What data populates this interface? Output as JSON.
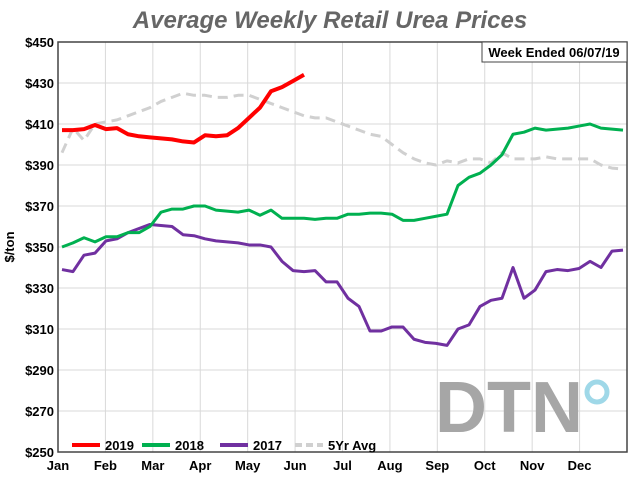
{
  "chart_data": {
    "type": "line",
    "title": "Average Weekly Retail Urea Prices",
    "annotation": "Week Ended 06/07/19",
    "ylabel": "$/ton",
    "xlabel": "",
    "ylim": [
      250,
      450
    ],
    "yticks": [
      "$450",
      "$430",
      "$410",
      "$390",
      "$370",
      "$350",
      "$330",
      "$310",
      "$290",
      "$270",
      "$250"
    ],
    "ytick_values": [
      450,
      430,
      410,
      390,
      370,
      350,
      330,
      310,
      290,
      270,
      250
    ],
    "xticks": [
      "Jan",
      "Feb",
      "Mar",
      "Apr",
      "May",
      "Jun",
      "Jul",
      "Aug",
      "Sep",
      "Oct",
      "Nov",
      "Dec"
    ],
    "x_unit": "week of year (1-52)",
    "grid": true,
    "legend_placement": "bottom-left",
    "watermark": "DTN",
    "series": [
      {
        "name": "2019",
        "color": "#ff0000",
        "dashed": false,
        "values": [
          407,
          407,
          407.5,
          409.5,
          407.5,
          408,
          405,
          404,
          403.5,
          403,
          402.5,
          401.5,
          401,
          404.5,
          404,
          404.5,
          408,
          413,
          418,
          426,
          428,
          431,
          434
        ]
      },
      {
        "name": "2018",
        "color": "#00b050",
        "dashed": false,
        "values": [
          350,
          352,
          354.5,
          352.5,
          355,
          355,
          357,
          357,
          360,
          367,
          368.5,
          368.5,
          370,
          370,
          368,
          367.5,
          367,
          368,
          365.5,
          368,
          364,
          364,
          364,
          363.5,
          364,
          364,
          366,
          366,
          366.5,
          366.5,
          366,
          363,
          363,
          364,
          365,
          366,
          380,
          384,
          386,
          390,
          395,
          405,
          406,
          408,
          407,
          407.5,
          408,
          409,
          410,
          408,
          407.5,
          407
        ]
      },
      {
        "name": "2017",
        "color": "#7030a0",
        "dashed": false,
        "values": [
          339,
          338,
          346,
          347,
          353,
          354,
          357,
          359,
          361,
          360.5,
          360,
          356,
          355.5,
          354,
          353,
          352.5,
          352,
          351,
          351,
          350,
          343,
          338.5,
          338,
          338.5,
          333,
          333,
          325,
          321,
          309,
          309,
          311,
          311,
          305,
          303.5,
          303,
          302,
          310,
          312,
          321,
          324,
          325,
          340,
          325,
          329,
          338,
          339,
          338.5,
          339.5,
          343,
          340,
          348,
          348.5
        ]
      },
      {
        "name": "5Yr Avg",
        "color": "#d0d0d0",
        "dashed": true,
        "values": [
          396,
          408,
          402,
          410,
          411,
          412,
          414,
          416,
          418,
          421,
          423,
          425,
          424,
          424,
          423,
          423,
          424,
          424,
          422,
          420,
          418,
          416,
          414,
          413,
          413,
          411,
          409,
          407,
          405,
          404,
          400,
          396,
          393,
          391,
          390,
          392,
          391,
          393,
          393,
          391,
          396,
          393,
          393,
          393,
          394,
          393,
          393,
          393,
          393,
          390,
          388.5,
          388
        ]
      }
    ]
  }
}
